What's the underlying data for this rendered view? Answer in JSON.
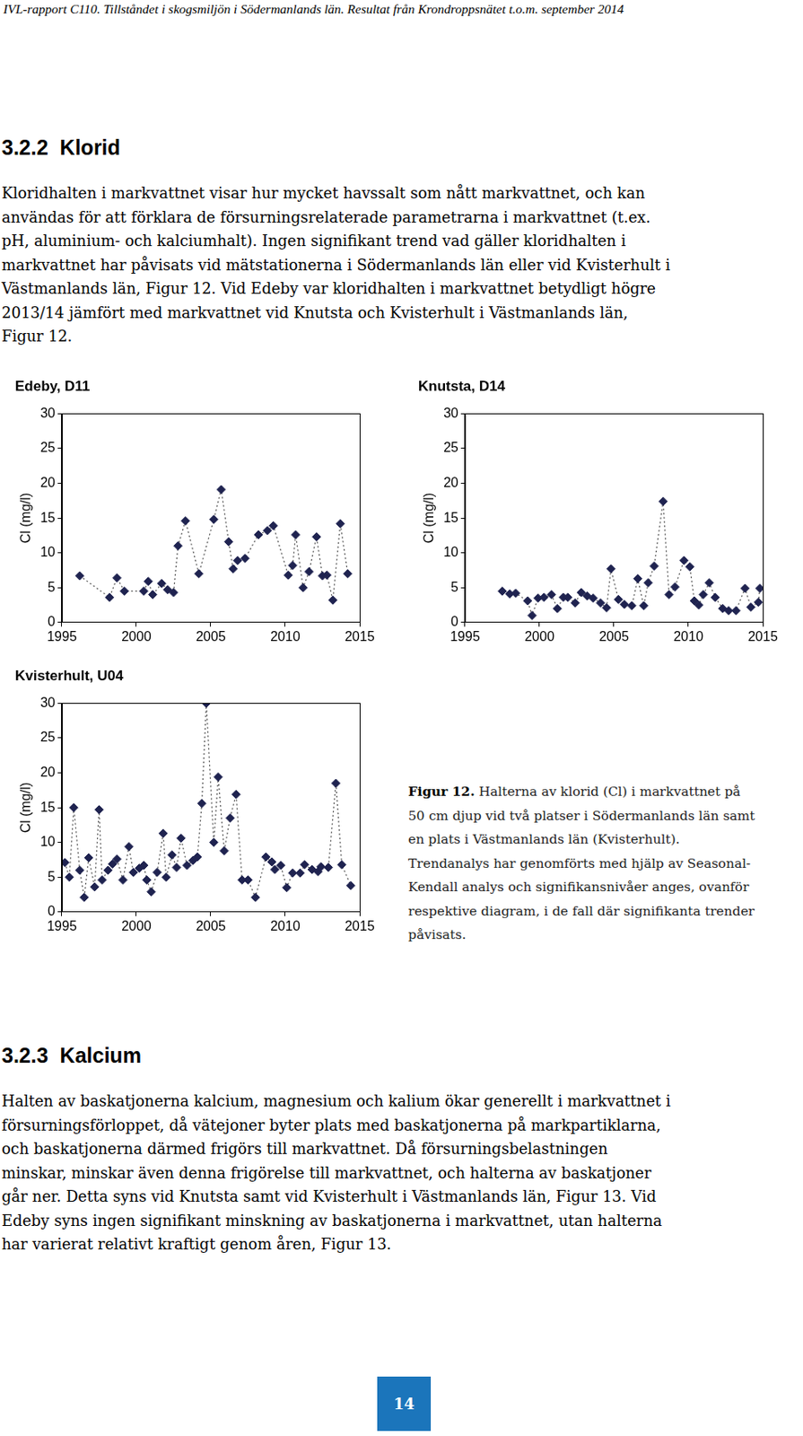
{
  "header": "IVL-rapport C110. Tillståndet i skogsmiljön i Södermanlands län. Resultat från Krondroppsnätet t.o.m. september 2014",
  "sections": [
    {
      "number": "3.2.2",
      "title": "Klorid",
      "lines": [
        "Kloridhalten i markvattnet visar hur mycket havssalt som nått markvattnet, och kan",
        "användas för att förklara de försurningsrelaterade parametrarna i markvattnet (t.ex.",
        "pH, aluminium- och kalciumhalt). Ingen signifikant trend vad gäller kloridhalten i",
        "markvattnet har påvisats vid mätstationerna i Södermanlands län eller vid Kvisterhult i",
        "Västmanlands län, Figur 12.  Vid Edeby var kloridhalten i markvattnet betydligt högre",
        "2013/14 jämfört med markvattnet vid Knutsta och Kvisterhult i Västmanlands län,",
        "Figur 12."
      ]
    },
    {
      "number": "3.2.3",
      "title": "Kalcium",
      "lines": [
        "Halten av baskatjonerna kalcium, magnesium och kalium ökar generellt i markvattnet i",
        "försurningsförloppet, då vätejoner byter plats med baskatjonerna på markpartiklarna,",
        "och baskatjonerna därmed frigörs till markvattnet. Då försurningsbelastningen",
        "minskar, minskar även denna frigörelse till markvattnet, och halterna av baskatjoner",
        "går ner. Detta syns vid Knutsta samt vid Kvisterhult i Västmanlands län, Figur 13. Vid",
        "Edeby syns ingen signifikant minskning av baskatjonerna i markvattnet, utan halterna",
        "har varierat relativt kraftigt genom åren, Figur 13."
      ]
    }
  ],
  "chart_data": [
    {
      "type": "line",
      "title": "Edeby, D11",
      "y_label": "Cl (mg/l)",
      "x": [
        1996.2,
        1998.2,
        1998.7,
        1999.2,
        2000.5,
        2000.8,
        2001.1,
        2001.7,
        2002.1,
        2002.5,
        2002.8,
        2003.3,
        2004.2,
        2005.2,
        2005.7,
        2006.2,
        2006.5,
        2006.8,
        2007.3,
        2008.2,
        2008.8,
        2009.2,
        2010.2,
        2010.5,
        2010.7,
        2011.2,
        2011.6,
        2012.1,
        2012.5,
        2012.8,
        2013.2,
        2013.7,
        2014.2
      ],
      "values": [
        6.7,
        3.6,
        6.4,
        4.5,
        4.5,
        5.9,
        4.0,
        5.6,
        4.7,
        4.3,
        11.0,
        14.6,
        7.0,
        14.8,
        19.1,
        11.6,
        7.7,
        8.9,
        9.2,
        12.6,
        13.2,
        13.9,
        6.8,
        8.2,
        12.6,
        5.0,
        7.3,
        12.3,
        6.7,
        6.8,
        3.2,
        14.2,
        7.0
      ],
      "color": "#1f2350",
      "marker": "diamond",
      "line_style": "dotted",
      "grid": false,
      "xlim": [
        1995,
        2015
      ],
      "xticks": [
        1995,
        2000,
        2005,
        2010,
        2015
      ],
      "ylim": [
        0,
        30
      ],
      "yticks": [
        0,
        5,
        10,
        15,
        20,
        25,
        30
      ]
    },
    {
      "type": "line",
      "title": "Knutsta, D14",
      "y_label": "Cl (mg/l)",
      "x": [
        1997.5,
        1998.0,
        1998.4,
        1999.2,
        1999.5,
        1999.9,
        2000.3,
        2000.8,
        2001.2,
        2001.6,
        2001.9,
        2002.4,
        2002.8,
        2003.2,
        2003.6,
        2004.1,
        2004.5,
        2004.8,
        2005.3,
        2005.7,
        2006.2,
        2006.6,
        2007.0,
        2007.3,
        2007.7,
        2008.3,
        2008.7,
        2009.1,
        2009.7,
        2010.1,
        2010.4,
        2010.7,
        2011.0,
        2011.4,
        2011.8,
        2012.3,
        2012.7,
        2013.2,
        2013.8,
        2014.2,
        2014.7,
        2014.8
      ],
      "values": [
        4.5,
        4.1,
        4.2,
        3.1,
        1.0,
        3.5,
        3.6,
        4.0,
        2.0,
        3.6,
        3.6,
        2.8,
        4.3,
        3.8,
        3.5,
        2.8,
        2.1,
        7.7,
        3.3,
        2.6,
        2.4,
        6.3,
        2.4,
        5.7,
        8.1,
        17.4,
        4.0,
        5.1,
        8.9,
        8.0,
        3.1,
        2.5,
        4.0,
        5.7,
        3.6,
        2.0,
        1.7,
        1.7,
        4.9,
        2.2,
        2.9,
        4.9
      ],
      "color": "#1f2350",
      "marker": "diamond",
      "line_style": "dotted",
      "grid": false,
      "xlim": [
        1995,
        2015
      ],
      "xticks": [
        1995,
        2000,
        2005,
        2010,
        2015
      ],
      "ylim": [
        0,
        30
      ],
      "yticks": [
        0,
        5,
        10,
        15,
        20,
        25,
        30
      ]
    },
    {
      "type": "line",
      "title": "Kvisterhult, U04",
      "y_label": "Cl (mg/l)",
      "x": [
        1995.2,
        1995.5,
        1995.8,
        1996.2,
        1996.5,
        1996.8,
        1997.2,
        1997.5,
        1997.7,
        1998.1,
        1998.4,
        1998.7,
        1999.1,
        1999.5,
        1999.8,
        2000.2,
        2000.5,
        2000.7,
        2001.0,
        2001.4,
        2001.8,
        2002.0,
        2002.4,
        2002.7,
        2003.0,
        2003.4,
        2003.8,
        2004.1,
        2004.4,
        2004.7,
        2005.2,
        2005.5,
        2005.9,
        2006.3,
        2006.7,
        2007.1,
        2007.5,
        2008.0,
        2008.7,
        2009.1,
        2009.3,
        2009.7,
        2010.1,
        2010.5,
        2011.0,
        2011.3,
        2011.8,
        2012.2,
        2012.4,
        2012.9,
        2013.4,
        2013.8,
        2014.4
      ],
      "values": [
        7.1,
        5.0,
        15.0,
        6.0,
        2.1,
        7.8,
        3.6,
        14.7,
        4.6,
        6.0,
        6.9,
        7.6,
        4.6,
        9.4,
        5.7,
        6.3,
        6.7,
        4.6,
        2.9,
        5.7,
        11.3,
        5.0,
        8.2,
        6.4,
        10.6,
        6.7,
        7.4,
        7.9,
        15.6,
        30.0,
        10.0,
        19.4,
        8.8,
        13.5,
        16.9,
        4.6,
        4.6,
        2.1,
        7.9,
        7.2,
        6.1,
        6.7,
        3.5,
        5.6,
        5.6,
        6.8,
        6.1,
        5.8,
        6.5,
        6.4,
        18.5,
        6.8,
        3.8
      ],
      "color": "#1f2350",
      "marker": "diamond",
      "line_style": "dotted",
      "grid": false,
      "xlim": [
        1995,
        2015
      ],
      "xticks": [
        1995,
        2000,
        2005,
        2010,
        2015
      ],
      "ylim": [
        0,
        30
      ],
      "yticks": [
        0,
        5,
        10,
        15,
        20,
        25,
        30
      ]
    }
  ],
  "caption": {
    "label": "Figur 12.",
    "lines": [
      " Halterna av klorid (Cl) i markvattnet på",
      "50 cm djup vid två platser i Södermanlands län samt",
      "en plats i Västmanlands län (Kvisterhult).",
      "Trendanalys har genomförts med hjälp av Seasonal-",
      "Kendall analys och signifikansnivåer anges, ovanför",
      "respektive diagram, i de fall där signifikanta trender",
      "påvisats."
    ]
  },
  "page_number": "14"
}
